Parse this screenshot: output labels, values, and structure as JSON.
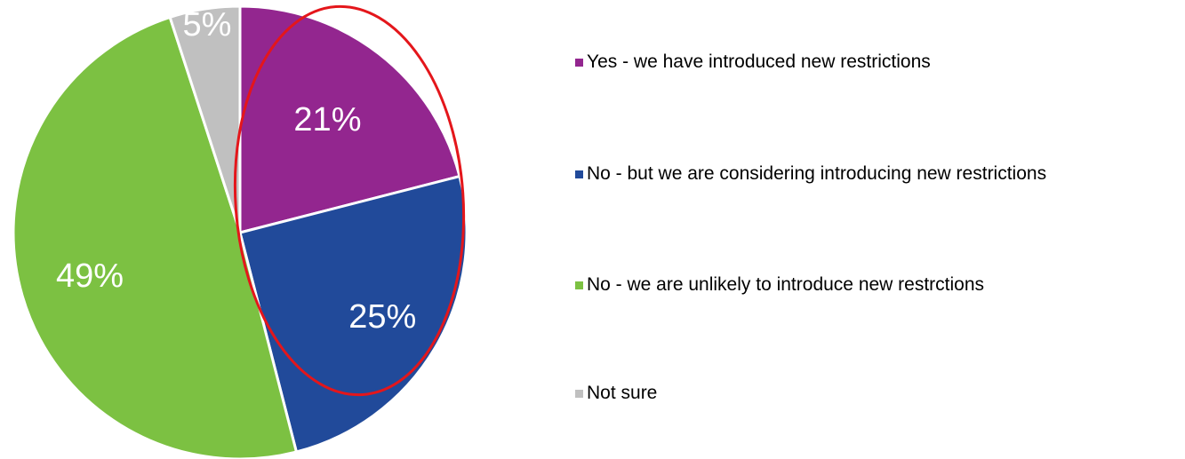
{
  "chart_data": {
    "type": "pie",
    "title": "",
    "slices": [
      {
        "label": "Yes - we have introduced new restrictions",
        "value": 21,
        "value_label": "21%",
        "color": "#93268f"
      },
      {
        "label": "No - but we are considering introducing new restrictions",
        "value": 25,
        "value_label": "25%",
        "color": "#214a9a"
      },
      {
        "label": "No - we are unlikely to introduce new restrctions",
        "value": 49,
        "value_label": "49%",
        "color": "#7cc142"
      },
      {
        "label": "Not sure",
        "value": 5,
        "value_label": "5%",
        "color": "#c0c0c0"
      }
    ],
    "legend_placement": "right",
    "annotation": {
      "shape": "ellipse",
      "color": "#e4161b",
      "highlights": [
        "Yes - we have introduced new restrictions",
        "No - but we are considering introducing new restrictions"
      ]
    }
  }
}
